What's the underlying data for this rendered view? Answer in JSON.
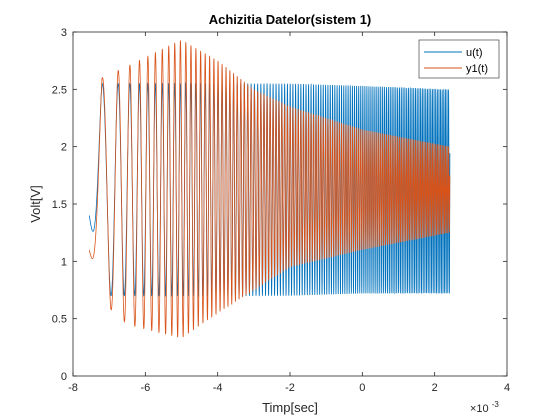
{
  "chart_data": {
    "type": "line",
    "title": "Achizitia Datelor(sistem 1)",
    "xlabel": "Timp[sec]",
    "ylabel": "Volt[V]",
    "x_exponent_label": "×10",
    "x_exponent_power": "-3",
    "xlim": [
      -8,
      4
    ],
    "ylim": [
      0,
      3
    ],
    "x_ticks": [
      "-8",
      "-6",
      "-4",
      "-2",
      "0",
      "2",
      "4"
    ],
    "y_ticks": [
      "0",
      "0.5",
      "1",
      "1.5",
      "2",
      "2.5",
      "3"
    ],
    "x_tick_values": [
      -8,
      -6,
      -4,
      -2,
      0,
      2,
      4
    ],
    "y_tick_values": [
      0,
      0.5,
      1,
      1.5,
      2,
      2.5,
      3
    ],
    "legend_position": "top-right",
    "grid": false,
    "series": [
      {
        "name": "u(t)",
        "color": "#0072BD",
        "description": "chirp signal, amplitude ~0.9 V around 1.6 V, frequency increasing",
        "x_range": [
          -7.55,
          2.42
        ],
        "envelope_time": [
          -7.55,
          -7.2,
          -6.0,
          -4.0,
          -2.0,
          0.0,
          2.42
        ],
        "envelope_max": [
          1.4,
          2.55,
          2.55,
          2.55,
          2.55,
          2.53,
          2.5
        ],
        "envelope_min": [
          1.4,
          0.7,
          0.7,
          0.7,
          0.7,
          0.72,
          0.72
        ]
      },
      {
        "name": "y1(t)",
        "color": "#D95319",
        "description": "system response, peak ~2.93 V near -5e-3 s, decaying toward 1.2–2.0 V",
        "x_range": [
          -7.55,
          2.42
        ],
        "envelope_time": [
          -7.55,
          -7.2,
          -6.5,
          -5.0,
          -4.0,
          -3.0,
          -2.0,
          0.0,
          2.42
        ],
        "envelope_max": [
          1.1,
          2.6,
          2.7,
          2.93,
          2.75,
          2.5,
          2.35,
          2.15,
          2.0
        ],
        "envelope_min": [
          1.1,
          0.65,
          0.45,
          0.33,
          0.55,
          0.75,
          0.95,
          1.1,
          1.25
        ]
      }
    ]
  }
}
